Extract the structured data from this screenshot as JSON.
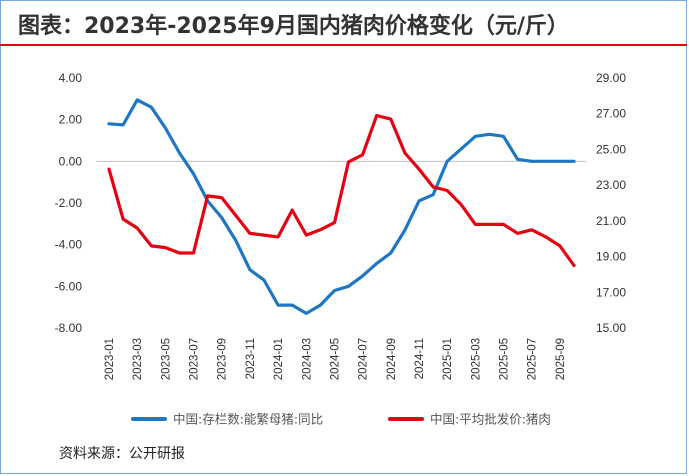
{
  "header": {
    "title": "图表：2023年-2025年9月国内猪肉价格变化（元/斤）"
  },
  "footer": {
    "source": "资料来源：公开研报"
  },
  "chart_data": {
    "type": "line",
    "title": "图表：2023年-2025年9月国内猪肉价格变化（元/斤）",
    "x_tick_labels": [
      "2023-01",
      "2023-03",
      "2023-05",
      "2023-07",
      "2023-09",
      "2023-11",
      "2024-01",
      "2024-03",
      "2024-05",
      "2024-07",
      "2024-09",
      "2024-11",
      "2025-01",
      "2025-03",
      "2025-05",
      "2025-07",
      "2025-09"
    ],
    "y_left": {
      "ticks": [
        "4.00",
        "2.00",
        "0.00",
        "-2.00",
        "-4.00",
        "-6.00",
        "-8.00"
      ],
      "ylim": [
        -8,
        4
      ]
    },
    "y_right": {
      "ticks": [
        "29.00",
        "27.00",
        "25.00",
        "23.00",
        "21.00",
        "19.00",
        "17.00",
        "15.00"
      ],
      "ylim": [
        15,
        29
      ]
    },
    "grid": false,
    "legend_position": "bottom",
    "series": [
      {
        "name": "中国:存栏数:能繁母猪:同比",
        "axis": "left",
        "color": "#1f77c4",
        "points": [
          [
            "2023-01",
            1.8
          ],
          [
            "2023-02",
            1.75
          ],
          [
            "2023-03",
            2.95
          ],
          [
            "2023-04",
            2.6
          ],
          [
            "2023-05",
            1.6
          ],
          [
            "2023-06",
            0.4
          ],
          [
            "2023-07",
            -0.6
          ],
          [
            "2023-08",
            -1.9
          ],
          [
            "2023-09",
            -2.7
          ],
          [
            "2023-10",
            -3.8
          ],
          [
            "2023-11",
            -5.2
          ],
          [
            "2023-12",
            -5.7
          ],
          [
            "2024-01",
            -6.9
          ],
          [
            "2024-02",
            -6.9
          ],
          [
            "2024-03",
            -7.3
          ],
          [
            "2024-04",
            -6.9
          ],
          [
            "2024-05",
            -6.2
          ],
          [
            "2024-06",
            -6.0
          ],
          [
            "2024-07",
            -5.5
          ],
          [
            "2024-08",
            -4.9
          ],
          [
            "2024-09",
            -4.4
          ],
          [
            "2024-10",
            -3.3
          ],
          [
            "2024-11",
            -1.9
          ],
          [
            "2024-12",
            -1.6
          ],
          [
            "2025-01",
            0.0
          ],
          [
            "2025-02",
            0.6
          ],
          [
            "2025-03",
            1.2
          ],
          [
            "2025-04",
            1.3
          ],
          [
            "2025-05",
            1.2
          ],
          [
            "2025-06",
            0.1
          ],
          [
            "2025-07",
            0.0
          ],
          [
            "2025-08",
            0.0
          ],
          [
            "2025-09",
            0.0
          ],
          [
            "2025-10",
            0.0
          ]
        ]
      },
      {
        "name": "中国:平均批发价:猪肉",
        "axis": "right",
        "color": "#e60012",
        "points": [
          [
            "2023-01",
            23.9
          ],
          [
            "2023-02",
            21.1
          ],
          [
            "2023-03",
            20.6
          ],
          [
            "2023-04",
            19.6
          ],
          [
            "2023-05",
            19.5
          ],
          [
            "2023-06",
            19.2
          ],
          [
            "2023-07",
            19.2
          ],
          [
            "2023-08",
            22.4
          ],
          [
            "2023-09",
            22.3
          ],
          [
            "2023-10",
            21.3
          ],
          [
            "2023-11",
            20.3
          ],
          [
            "2023-12",
            20.2
          ],
          [
            "2024-01",
            20.1
          ],
          [
            "2024-02",
            21.6
          ],
          [
            "2024-03",
            20.2
          ],
          [
            "2024-04",
            20.5
          ],
          [
            "2024-05",
            20.9
          ],
          [
            "2024-06",
            24.3
          ],
          [
            "2024-07",
            24.7
          ],
          [
            "2024-08",
            26.9
          ],
          [
            "2024-09",
            26.7
          ],
          [
            "2024-10",
            24.8
          ],
          [
            "2024-11",
            23.9
          ],
          [
            "2024-12",
            22.9
          ],
          [
            "2025-01",
            22.7
          ],
          [
            "2025-02",
            21.9
          ],
          [
            "2025-03",
            20.8
          ],
          [
            "2025-04",
            20.8
          ],
          [
            "2025-05",
            20.8
          ],
          [
            "2025-06",
            20.3
          ],
          [
            "2025-07",
            20.5
          ],
          [
            "2025-08",
            20.1
          ],
          [
            "2025-09",
            19.6
          ],
          [
            "2025-10",
            18.5
          ]
        ]
      }
    ]
  }
}
